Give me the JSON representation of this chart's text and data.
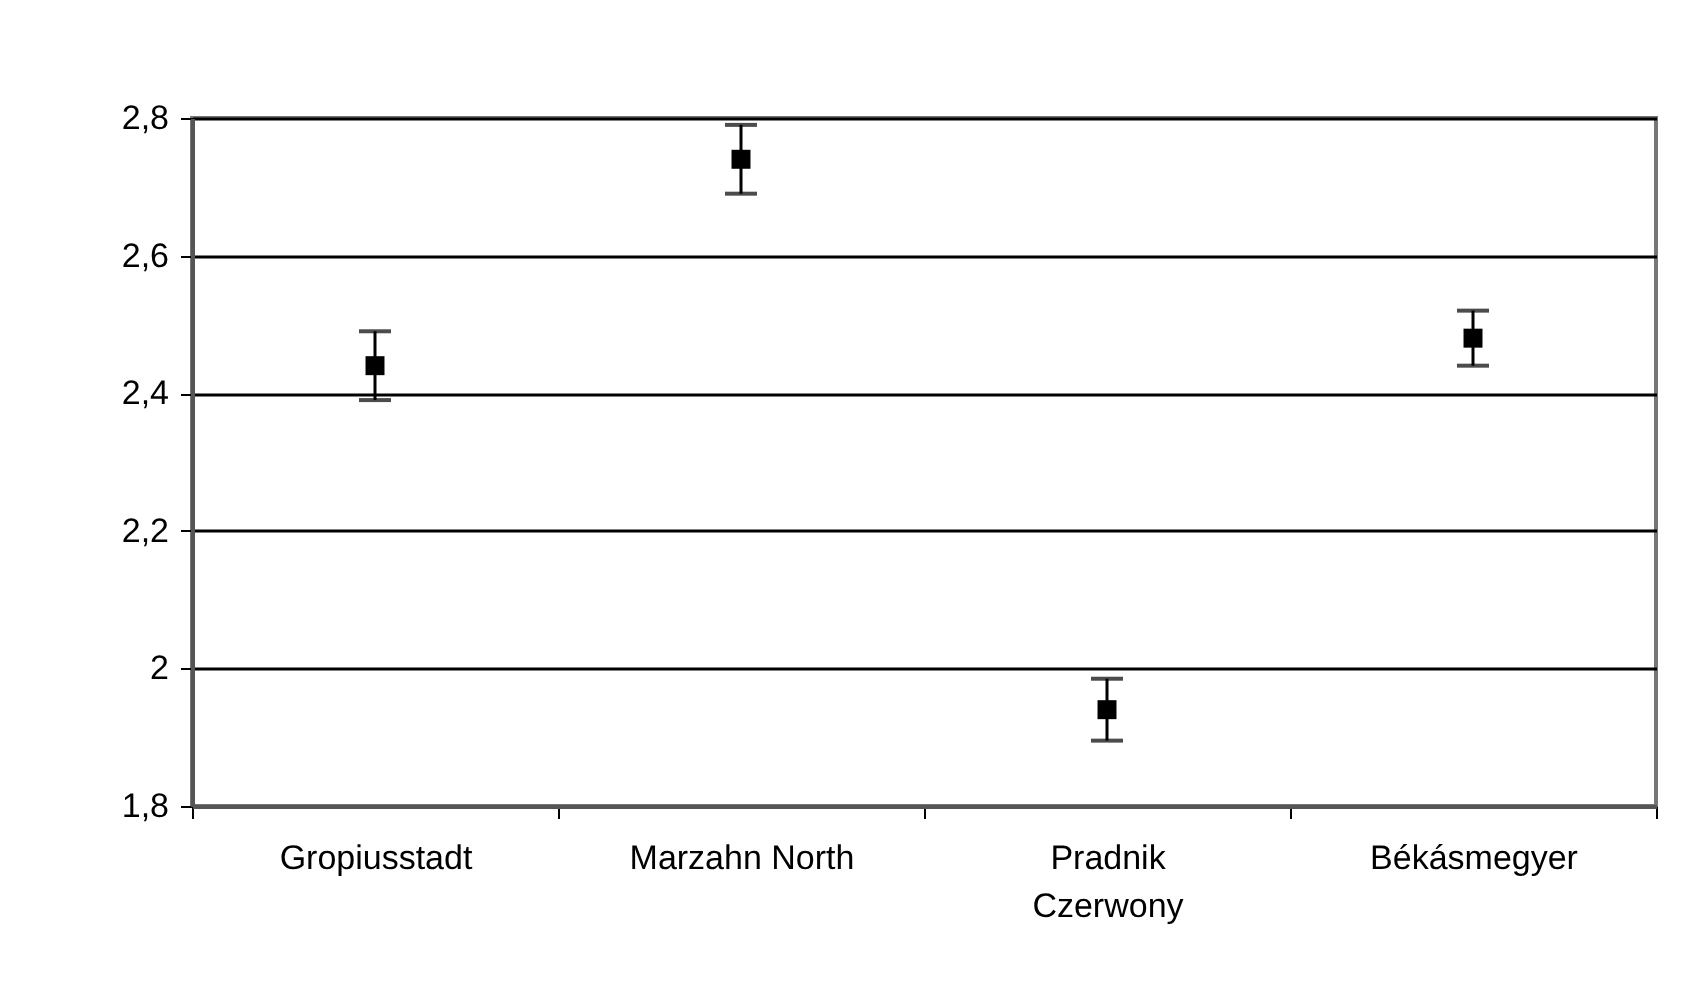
{
  "chart_data": {
    "type": "scatter",
    "categories": [
      "Gropiusstadt",
      "Marzahn North",
      "Pradnik Czerwony",
      "Békásmegyer"
    ],
    "values": [
      2.44,
      2.74,
      1.94,
      2.48
    ],
    "errors": [
      0.05,
      0.05,
      0.045,
      0.04
    ],
    "color": "#000000",
    "marker": "square",
    "ylim": [
      1.8,
      2.8
    ],
    "yticks": [
      {
        "value": 1.8,
        "label": "1,8"
      },
      {
        "value": 2.0,
        "label": "2"
      },
      {
        "value": 2.2,
        "label": "2,2"
      },
      {
        "value": 2.4,
        "label": "2,4"
      },
      {
        "value": 2.6,
        "label": "2,6"
      },
      {
        "value": 2.8,
        "label": "2,8"
      }
    ],
    "grid": "y"
  }
}
